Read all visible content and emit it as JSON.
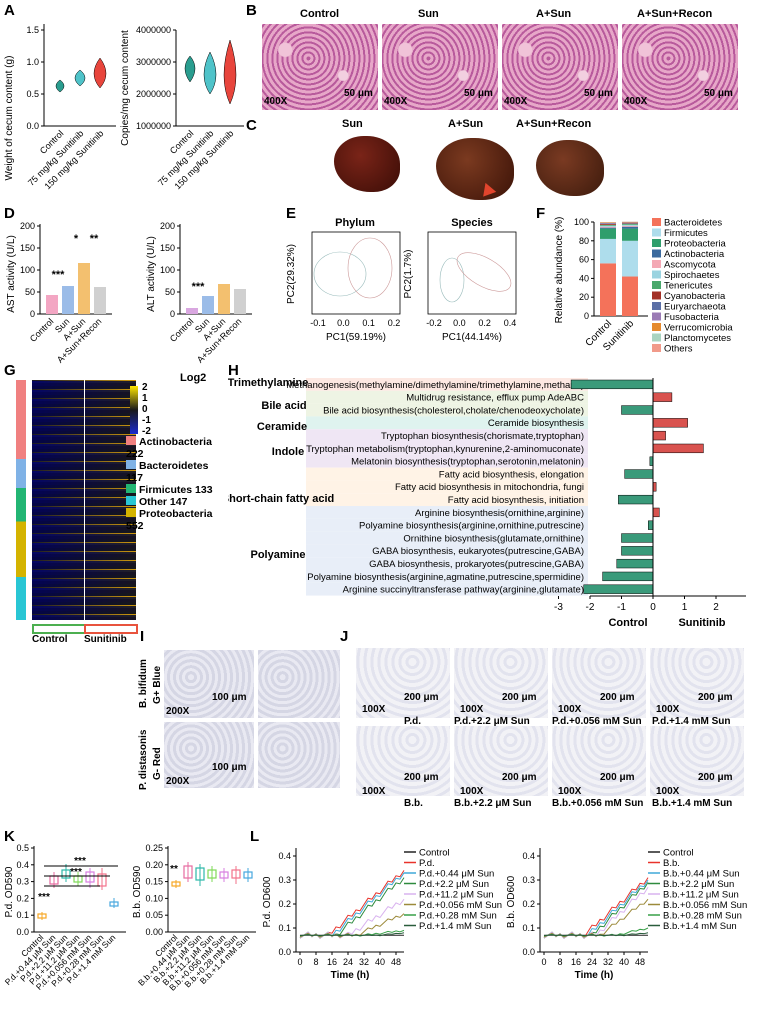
{
  "panels": {
    "A": "A",
    "B": "B",
    "C": "C",
    "D": "D",
    "E": "E",
    "F": "F",
    "G": "G",
    "H": "H",
    "I": "I",
    "J": "J",
    "K": "K",
    "L": "L"
  },
  "A": {
    "left": {
      "ylabel": "Weight of cecum content (g)",
      "yticks": [
        "0.0",
        "0.5",
        "1.0",
        "1.5"
      ],
      "categories": [
        "Control",
        "75 mg/kg Sunitinib",
        "150 mg/kg Sunitinib"
      ],
      "colors": [
        "#2a9d8f",
        "#26a6b8",
        "#e8453c"
      ]
    },
    "right": {
      "ylabel": "Copies/mg cecum content",
      "yticks": [
        "1000000",
        "2000000",
        "3000000",
        "4000000"
      ],
      "categories": [
        "Control",
        "75 mg/kg Sunitinib",
        "150 mg/kg Sunitinib"
      ]
    }
  },
  "B": {
    "titles": [
      "Control",
      "Sun",
      "A+Sun",
      "A+Sun+Recon"
    ],
    "mag": "400X",
    "scale": "50 μm"
  },
  "C": {
    "titles": [
      "Sun",
      "A+Sun",
      "A+Sun+Recon"
    ]
  },
  "D": {
    "ast": {
      "ylabel": "AST activity (U/L)",
      "yticks": [
        "0",
        "50",
        "100",
        "150",
        "200"
      ],
      "categories": [
        "Control",
        "Sun",
        "A+Sun",
        "A+Sun+Recon"
      ],
      "sig": [
        "***",
        "*",
        "**"
      ]
    },
    "alt": {
      "ylabel": "ALT activity (U/L)",
      "yticks": [
        "0",
        "50",
        "100",
        "150",
        "200"
      ],
      "categories": [
        "Control",
        "Sun",
        "A+Sun",
        "A+Sun+Recon"
      ],
      "sig": [
        "***"
      ]
    }
  },
  "E": {
    "phylum": {
      "title": "Phylum",
      "xlabel": "PC1(59.19%)",
      "ylabel": "PC2(29.32%)",
      "xticks": [
        "-0.1",
        "0.0",
        "0.1",
        "0.2"
      ],
      "yticks": [
        "-0.10",
        "-0.05",
        "0.00",
        "0.05",
        "0.10"
      ]
    },
    "species": {
      "title": "Species",
      "xlabel": "PC1(44.14%)",
      "ylabel": "PC2(1.7%)",
      "xticks": [
        "-0.2",
        "0.0",
        "0.2",
        "0.4"
      ],
      "yticks": [
        "-0.2",
        "-0.1",
        "0.0",
        "0.1",
        "0.2"
      ]
    }
  },
  "F": {
    "ylabel": "Relative abundance (%)",
    "yticks": [
      "0",
      "20",
      "40",
      "60",
      "80",
      "100"
    ],
    "chart_data": {
      "type": "bar",
      "categories": [
        "Control",
        "Sunitinib"
      ],
      "series": [
        {
          "name": "Bacteroidetes",
          "values": [
            56,
            42
          ],
          "color": "#f4725a"
        },
        {
          "name": "Firmicutes",
          "values": [
            26,
            38
          ],
          "color": "#aeddec"
        },
        {
          "name": "Proteobacteria",
          "values": [
            11,
            13
          ],
          "color": "#2f9e6c"
        },
        {
          "name": "Actinobacteria",
          "values": [
            1,
            2
          ],
          "color": "#3b6a9e"
        },
        {
          "name": "Ascomycota",
          "values": [
            1,
            1
          ],
          "color": "#f4a8b4"
        },
        {
          "name": "Spirochaetes",
          "values": [
            1,
            1
          ],
          "color": "#9ad3e0"
        },
        {
          "name": "Tenericutes",
          "values": [
            1,
            1
          ],
          "color": "#4aa86c"
        },
        {
          "name": "Cyanobacteria",
          "values": [
            1,
            0.5
          ],
          "color": "#a33026"
        },
        {
          "name": "Euryarchaeota",
          "values": [
            0.5,
            0.5
          ],
          "color": "#5b6fa6"
        },
        {
          "name": "Fusobacteria",
          "values": [
            0.5,
            0.5
          ],
          "color": "#9b7bb5"
        },
        {
          "name": "Verrucomicrobia",
          "values": [
            0.5,
            0.5
          ],
          "color": "#e58a2f"
        },
        {
          "name": "Planctomycetes",
          "values": [
            0.3,
            0.3
          ],
          "color": "#a9d4c0"
        },
        {
          "name": "Others",
          "values": [
            0.2,
            0.2
          ],
          "color": "#f19a8a"
        }
      ]
    }
  },
  "G": {
    "legend_title": "Log2",
    "scale": [
      "2",
      "1",
      "0",
      "-1",
      "-2"
    ],
    "groups": [
      "Actinobacteria 222",
      "Bacteroidetes 117",
      "Firmicutes 133",
      "Other 147",
      "Proteobacteria 552"
    ],
    "group_colors": [
      "#f08080",
      "#7fb2e6",
      "#22b573",
      "#29c6d4",
      "#d4b300"
    ],
    "x_groups": [
      "Control",
      "Sunitinib"
    ]
  },
  "H": {
    "categories": [
      "Trimethylamine",
      "Bile acid",
      "Ceramide",
      "Indole",
      "Short-chain fatty acid",
      "Polyamine"
    ],
    "xticks": [
      "-3",
      "-2",
      "-1",
      "0",
      "1",
      "2"
    ],
    "xlabel_left": "Control",
    "xlabel_right": "Sunitinib",
    "chart_data": {
      "type": "bar",
      "xlim": [
        -3,
        2
      ],
      "categories": [
        "Methanogenesis(methylamine/dimethylamine/trimethylamine,methane)",
        "Multidrug resistance, efflux pump AdeABC",
        "Bile acid biosynthesis(cholesterol,cholate/chenodeoxycholate)",
        "Ceramide biosynthesis",
        "Tryptophan biosynthesis(chorismate,tryptophan)",
        "Tryptophan metabolism(tryptophan,kynurenine,2-aminomuconate)",
        "Melatonin biosynthesis(tryptophan,serotonin,melatonin)",
        "Fatty acid biosynthesis, elongation",
        "Fatty acid biosynthesis in mitochondria, fungi",
        "Fatty acid biosynthesis, initiation",
        "Arginine biosynthesis(ornithine,arginine)",
        "Polyamine biosynthesis(arginine,ornithine,putrescine)",
        "Ornithine biosynthesis(glutamate,ornithine)",
        "GABA biosynthesis, eukaryotes(putrescine,GABA)",
        "GABA biosynthesis, prokaryotes(putrescine,GABA)",
        "Polyamine biosynthesis(arginine,agmatine,putrescine,spermidine)",
        "Arginine succinyltransferase pathway(arginine,glutamate)"
      ],
      "values": [
        -2.6,
        0.6,
        -1.0,
        1.1,
        0.4,
        1.6,
        -0.1,
        -0.9,
        0.1,
        -1.1,
        0.2,
        -0.15,
        -1.0,
        -1.0,
        -1.15,
        -1.6,
        -2.2
      ]
    }
  },
  "I": {
    "rows": [
      "B. bifidum G+ Blue",
      "P. distasonis G- Red"
    ],
    "row_a": [
      "B. bifidum",
      "P. distasonis"
    ],
    "row_b": [
      "G+ Blue",
      "G- Red"
    ],
    "mag": "200X",
    "scale": "100 μm"
  },
  "J": {
    "mag": "100X",
    "scale": "200 μm",
    "row1": [
      "P.d.",
      "P.d.+2.2 μM Sun",
      "P.d.+0.056 mM Sun",
      "P.d.+1.4 mM Sun"
    ],
    "row2": [
      "B.b.",
      "B.b.+2.2 μM Sun",
      "B.b.+0.056 mM Sun",
      "B.b.+1.4 mM Sun"
    ]
  },
  "K": {
    "left": {
      "ylabel": "P.d. OD590",
      "yticks": [
        "0.0",
        "0.1",
        "0.2",
        "0.3",
        "0.4",
        "0.5"
      ],
      "sig": [
        "***",
        "***",
        "***"
      ],
      "categories": [
        "Control",
        "P.d.+0.44 μM Sun",
        "P.d.+2.2 μM Sun",
        "P.d.+11.2 μM Sun",
        "P.d.+0.056 mM Sun",
        "P.d.+0.28 mM Sun",
        "P.d.+1.4 mM Sun"
      ]
    },
    "right": {
      "ylabel": "B.b. OD590",
      "yticks": [
        "0.00",
        "0.05",
        "0.10",
        "0.15",
        "0.20",
        "0.25"
      ],
      "sig": [
        "**"
      ],
      "categories": [
        "Control",
        "B.b.+0.44 μM Sun",
        "B.b.+2.2 μM Sun",
        "B.b.+11.2 μM Sun",
        "B.b.+0.056 mM Sun",
        "B.b.+0.28 mM Sun",
        "B.b.+1.4 mM Sun"
      ]
    },
    "colors": [
      "#f6a623",
      "#e76aa0",
      "#2cb7a8",
      "#7ed957",
      "#d77fe0",
      "#f2718a",
      "#46a7de",
      "#e7b04a"
    ]
  },
  "L": {
    "left": {
      "ylabel": "P.d. OD600",
      "xlabel": "Time (h)",
      "yticks": [
        "0.0",
        "0.1",
        "0.2",
        "0.3",
        "0.4"
      ],
      "xticks": [
        "0",
        "8",
        "16",
        "24",
        "32",
        "40",
        "48"
      ],
      "legend": [
        "Control",
        "P.d.",
        "P.d.+0.44 μM Sun",
        "P.d.+2.2 μM Sun",
        "P.d.+11.2 μM Sun",
        "P.d.+0.056 mM Sun",
        "P.d.+0.28 mM Sun",
        "P.d.+1.4 mM Sun"
      ]
    },
    "right": {
      "ylabel": "B.b. OD600",
      "xlabel": "Time (h)",
      "yticks": [
        "0.0",
        "0.1",
        "0.2",
        "0.3",
        "0.4"
      ],
      "xticks": [
        "0",
        "8",
        "16",
        "24",
        "32",
        "40",
        "48"
      ],
      "legend": [
        "Control",
        "B.b.",
        "B.b.+0.44 μM Sun",
        "B.b.+2.2 μM Sun",
        "B.b.+11.2 μM Sun",
        "B.b.+0.056 mM Sun",
        "B.b.+0.28 mM Sun",
        "B.b.+1.4 mM Sun"
      ]
    },
    "colors": [
      "#222222",
      "#e8332b",
      "#3fa9d8",
      "#2e8b3e",
      "#d9b3ef",
      "#9c8a3a",
      "#39a048",
      "#2a5d3c"
    ]
  }
}
